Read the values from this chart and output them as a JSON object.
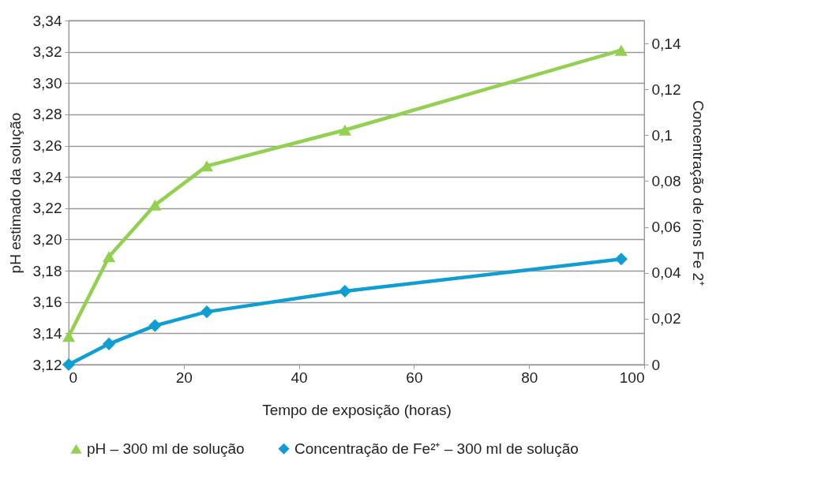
{
  "chart_data": {
    "type": "line",
    "xlabel": "Tempo de exposição (horas)",
    "ylabel": "pH estimado da solução",
    "y2label": "Concentração de íons Fe 2⁺",
    "x": [
      0,
      7,
      15,
      24,
      48,
      96
    ],
    "series": [
      {
        "name": "pH – 300 ml de solução",
        "color": "#92d050",
        "marker": "triangle",
        "values": [
          3.138,
          3.189,
          3.222,
          3.247,
          3.27,
          3.321
        ]
      },
      {
        "name": "Concentração de Fe²⁺ –  300 ml de solução",
        "color": "#0e9ed4",
        "marker": "diamond",
        "axis": "y2",
        "values": [
          0,
          0.009,
          0.017,
          0.023,
          0.032,
          0.046
        ]
      }
    ],
    "xlim": [
      0,
      100
    ],
    "xticks": [
      0,
      20,
      40,
      60,
      80,
      100
    ],
    "ylim": [
      3.12,
      3.34
    ],
    "yticks": [
      {
        "value": 3.12,
        "label": "3,12"
      },
      {
        "value": 3.14,
        "label": "3,14"
      },
      {
        "value": 3.16,
        "label": "3,16"
      },
      {
        "value": 3.18,
        "label": "3,18"
      },
      {
        "value": 3.2,
        "label": "3,20"
      },
      {
        "value": 3.22,
        "label": "3,22"
      },
      {
        "value": 3.24,
        "label": "3,24"
      },
      {
        "value": 3.26,
        "label": "3,26"
      },
      {
        "value": 3.28,
        "label": "3,28"
      },
      {
        "value": 3.3,
        "label": "3,30"
      },
      {
        "value": 3.32,
        "label": "3,32"
      },
      {
        "value": 3.34,
        "label": "3,34"
      }
    ],
    "y2lim": [
      0,
      0.15
    ],
    "y2ticks": [
      0,
      {
        "value": 0.02,
        "label": "0,02"
      },
      {
        "value": 0.04,
        "label": "0,04"
      },
      {
        "value": 0.06,
        "label": "0,06"
      },
      {
        "value": 0.08,
        "label": "0,08"
      },
      {
        "value": 0.1,
        "label": "0,1"
      },
      {
        "value": 0.12,
        "label": "0,12"
      },
      {
        "value": 0.14,
        "label": "0,14"
      }
    ],
    "grid": "y",
    "legend": "bottom",
    "line_style": "solid"
  }
}
